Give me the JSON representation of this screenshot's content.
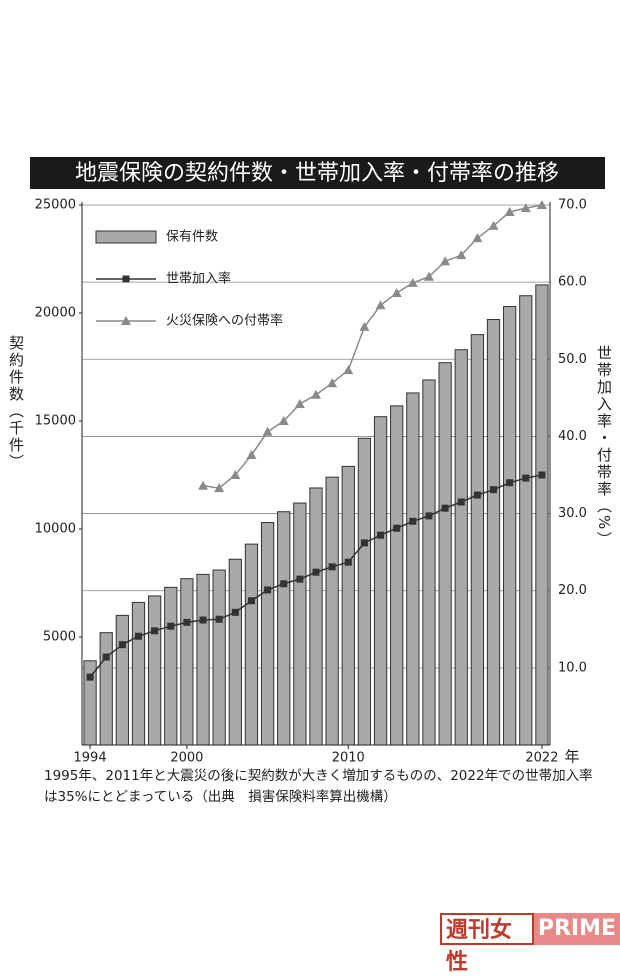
{
  "chart_data": {
    "type": "combo",
    "title": "地震保険の契約件数・世帯加入率・付帯率の推移",
    "x": [
      1994,
      1995,
      1996,
      1997,
      1998,
      1999,
      2000,
      2001,
      2002,
      2003,
      2004,
      2005,
      2006,
      2007,
      2008,
      2009,
      2010,
      2011,
      2012,
      2013,
      2014,
      2015,
      2016,
      2017,
      2018,
      2019,
      2020,
      2021,
      2022
    ],
    "xlim": [
      1993.5,
      2022.5
    ],
    "xticks": [
      1994,
      2000,
      2010,
      2022
    ],
    "xlabel": "年",
    "ylabel": "契約件数（千件）",
    "ylim": [
      0,
      25000
    ],
    "yticks": [
      5000,
      10000,
      15000,
      20000,
      25000
    ],
    "y2label": "世帯加入率・付帯率（%）",
    "y2lim": [
      0,
      70
    ],
    "y2ticks": [
      {
        "value": 10,
        "label": "10.0"
      },
      {
        "value": 20,
        "label": "20.0"
      },
      {
        "value": 30,
        "label": "30.0"
      },
      {
        "value": 40,
        "label": "40.0"
      },
      {
        "value": 50,
        "label": "50.0"
      },
      {
        "value": 60,
        "label": "60.0"
      },
      {
        "value": 70,
        "label": "70.0"
      }
    ],
    "grid": "y2",
    "series": [
      {
        "name": "保有件数",
        "type": "bar",
        "axis": "y",
        "color": "#a9a9a9",
        "values": [
          3900,
          5200,
          6000,
          6600,
          6900,
          7300,
          7700,
          7900,
          8100,
          8600,
          9300,
          10300,
          10800,
          11200,
          11900,
          12400,
          12900,
          14200,
          15200,
          15700,
          16300,
          16900,
          17700,
          18300,
          19000,
          19700,
          20300,
          20800,
          21300
        ]
      },
      {
        "name": "世帯加入率",
        "type": "line",
        "marker": "square",
        "axis": "y2",
        "color": "#333333",
        "values": [
          8.8,
          11.4,
          13.0,
          14.1,
          14.8,
          15.4,
          15.9,
          16.2,
          16.3,
          17.2,
          18.7,
          20.1,
          20.9,
          21.5,
          22.4,
          23.1,
          23.7,
          26.2,
          27.2,
          28.1,
          29.0,
          29.7,
          30.7,
          31.5,
          32.4,
          33.1,
          34.0,
          34.6,
          35.0
        ]
      },
      {
        "name": "火災保険への付帯率",
        "type": "line",
        "marker": "triangle",
        "axis": "y2",
        "color": "#8a8a8a",
        "values": [
          null,
          null,
          null,
          null,
          null,
          null,
          null,
          33.6,
          33.3,
          35.0,
          37.6,
          40.6,
          42.0,
          44.2,
          45.4,
          46.9,
          48.6,
          54.2,
          57.0,
          58.6,
          59.9,
          60.7,
          62.7,
          63.5,
          65.7,
          67.3,
          69.1,
          69.6,
          70.0
        ]
      }
    ]
  },
  "caption": "1995年、2011年と大震災の後に契約数が大きく増加するものの、2022年での世帯加入率は35%にとどまっている（出典　損害保険料率算出機構）",
  "watermark": {
    "left": "週刊女性",
    "right": "PRIME"
  }
}
